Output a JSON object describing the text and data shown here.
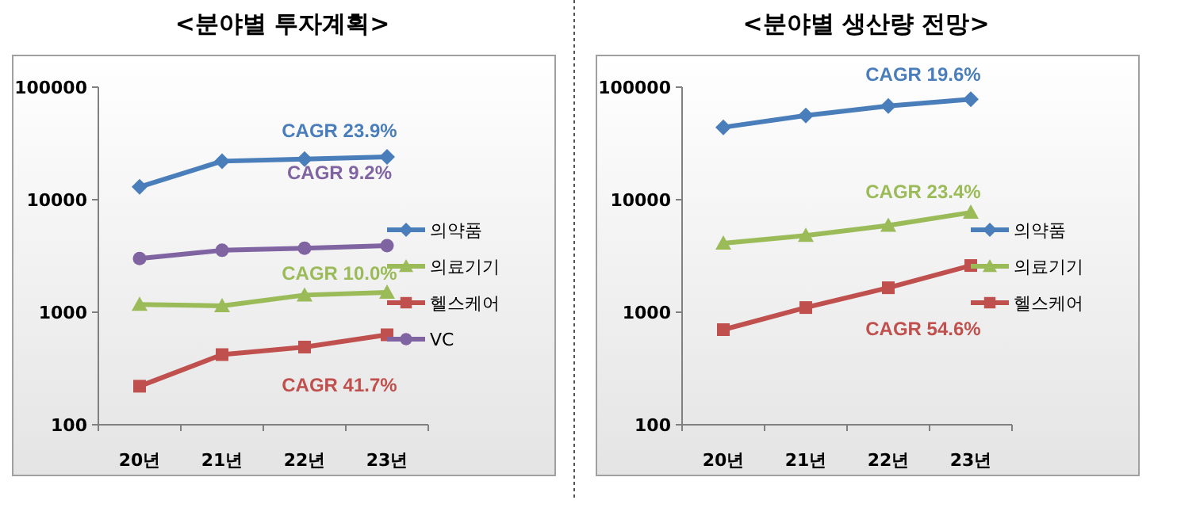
{
  "chart_data": [
    {
      "type": "line",
      "title": "<분야별 투자계획>",
      "categories": [
        "20년",
        "21년",
        "22년",
        "23년"
      ],
      "log": true,
      "ylim": [
        100,
        100000
      ],
      "yticks": [
        100,
        1000,
        10000,
        100000
      ],
      "grid": false,
      "legend": "right",
      "series": [
        {
          "name": "의약품",
          "color": "#4a7ebb",
          "marker": "diamond",
          "values": [
            13000,
            22000,
            23000,
            24000
          ]
        },
        {
          "name": "의료기기",
          "color": "#9bbb59",
          "marker": "triangle",
          "values": [
            1170,
            1140,
            1420,
            1500
          ]
        },
        {
          "name": "헬스케어",
          "color": "#c0504d",
          "marker": "square",
          "values": [
            220,
            420,
            490,
            630
          ]
        },
        {
          "name": "VC",
          "color": "#8064a2",
          "marker": "circle",
          "values": [
            3000,
            3550,
            3700,
            3900
          ]
        }
      ],
      "annotations": [
        "CAGR 23.9%",
        "CAGR 10.0%",
        "CAGR 41.7%",
        "CAGR 9.2%"
      ]
    },
    {
      "type": "line",
      "title": "<분야별 생산량 전망>",
      "categories": [
        "20년",
        "21년",
        "22년",
        "23년"
      ],
      "log": true,
      "ylim": [
        100,
        100000
      ],
      "yticks": [
        100,
        1000,
        10000,
        100000
      ],
      "grid": false,
      "legend": "right",
      "series": [
        {
          "name": "의약품",
          "color": "#4a7ebb",
          "marker": "diamond",
          "values": [
            44000,
            56000,
            68000,
            78000
          ]
        },
        {
          "name": "의료기기",
          "color": "#9bbb59",
          "marker": "triangle",
          "values": [
            4100,
            4800,
            5900,
            7700
          ]
        },
        {
          "name": "헬스케어",
          "color": "#c0504d",
          "marker": "square",
          "values": [
            700,
            1100,
            1650,
            2600
          ]
        }
      ],
      "annotations": [
        "CAGR 19.6%",
        "CAGR 23.4%",
        "CAGR 54.6%"
      ]
    }
  ]
}
